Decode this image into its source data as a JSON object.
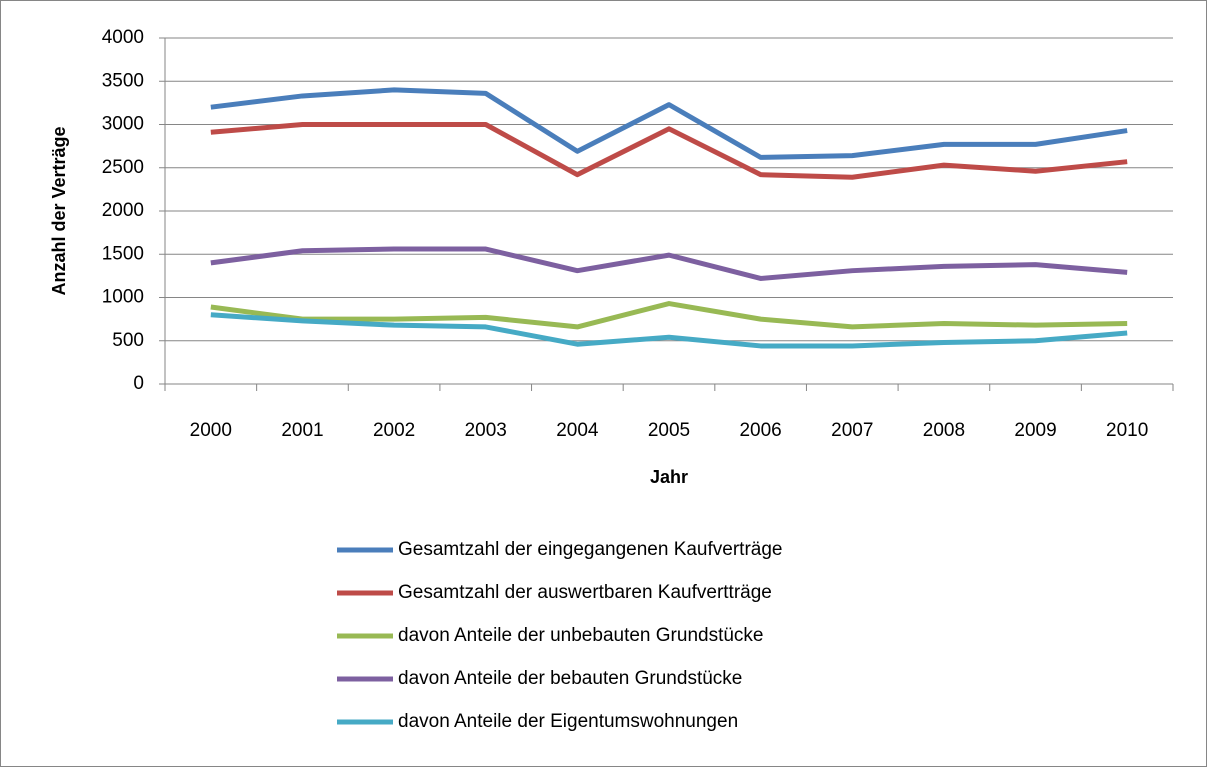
{
  "chart_data": {
    "type": "line",
    "x_label": "Jahr",
    "y_label": "Anzahl der Verträge",
    "categories": [
      "2000",
      "2001",
      "2002",
      "2003",
      "2004",
      "2005",
      "2006",
      "2007",
      "2008",
      "2009",
      "2010"
    ],
    "series": [
      {
        "name": "Gesamtzahl der eingegangenen Kaufverträge",
        "color": "#4a7ebb",
        "values": [
          3200,
          3330,
          3400,
          3360,
          2690,
          3230,
          2620,
          2640,
          2770,
          2770,
          2930
        ]
      },
      {
        "name": "Gesamtzahl der auswertbaren Kaufvertträge",
        "color": "#be4b48",
        "values": [
          2910,
          3000,
          3000,
          3000,
          2420,
          2950,
          2420,
          2390,
          2530,
          2460,
          2570
        ]
      },
      {
        "name": "davon Anteile der unbebauten Grundstücke",
        "color": "#98b954",
        "values": [
          890,
          750,
          750,
          770,
          660,
          930,
          750,
          660,
          700,
          680,
          700
        ]
      },
      {
        "name": "davon Anteile der bebauten Grundstücke",
        "color": "#7d60a0",
        "values": [
          1400,
          1540,
          1560,
          1560,
          1310,
          1490,
          1220,
          1310,
          1360,
          1380,
          1290
        ]
      },
      {
        "name": "davon Anteile der Eigentumswohnungen",
        "color": "#46aac5",
        "values": [
          800,
          730,
          680,
          660,
          460,
          540,
          440,
          440,
          480,
          500,
          590
        ]
      }
    ],
    "ylim": [
      0,
      4000
    ],
    "yticks": [
      0,
      500,
      1000,
      1500,
      2000,
      2500,
      3000,
      3500,
      4000
    ],
    "grid": true,
    "legend": "bottom"
  }
}
